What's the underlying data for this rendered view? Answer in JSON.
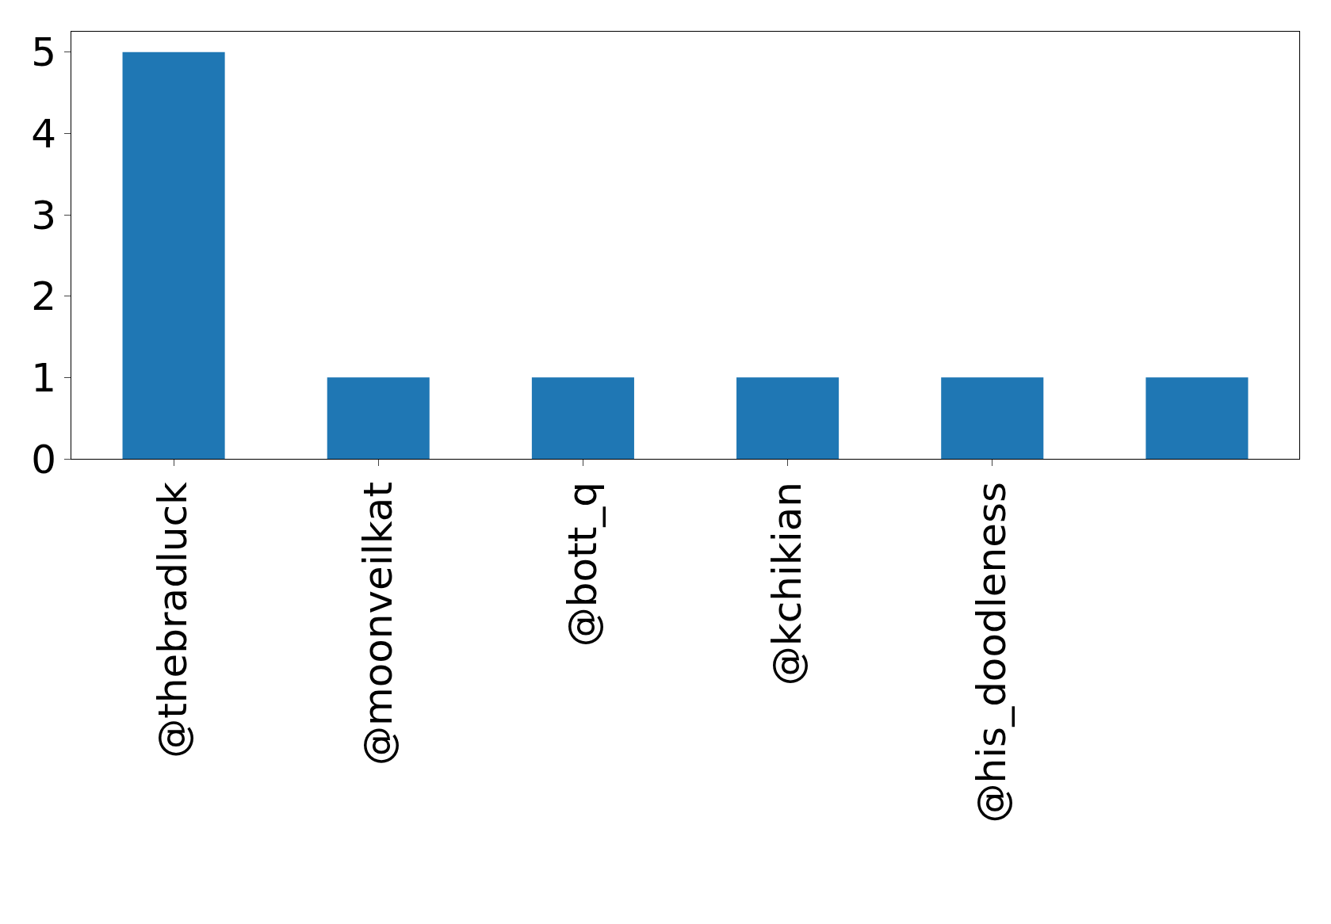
{
  "chart_data": {
    "type": "bar",
    "categories": [
      "@thebradluck",
      "@moonveilkat",
      "@bott_q",
      "@kchikian",
      "@his_doodleness",
      null
    ],
    "values": [
      5,
      1,
      1,
      1,
      1,
      1
    ],
    "color": "#1f77b4",
    "ylim": [
      0,
      5.25
    ],
    "yticks": [
      0,
      1,
      2,
      3,
      4,
      5
    ],
    "grid": false,
    "legend": false
  }
}
